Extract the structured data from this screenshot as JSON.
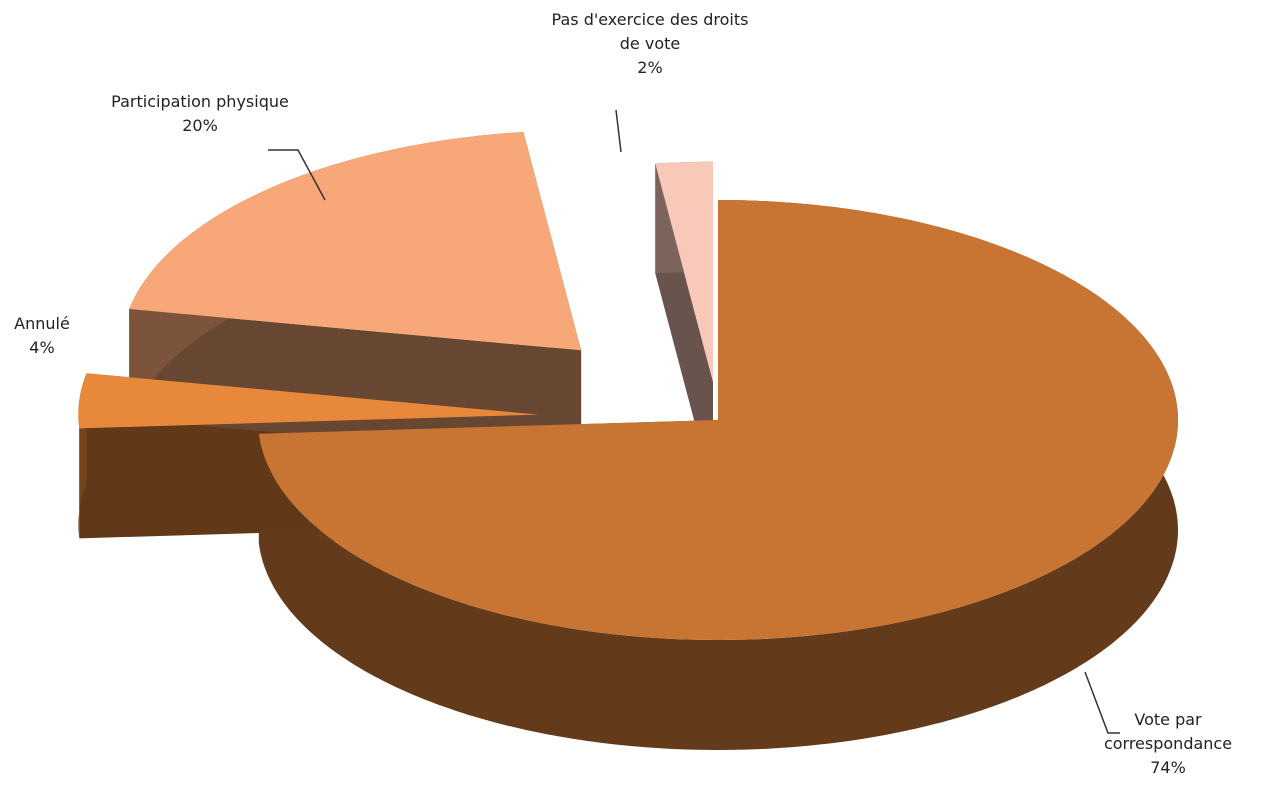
{
  "chart_data": {
    "type": "pie3d",
    "categories": [
      "Vote par correspondance",
      "Annulé",
      "Participation physique",
      "Pas d'exercice des droits de vote"
    ],
    "values": [
      74,
      4,
      20,
      2
    ],
    "value_labels": [
      "74%",
      "4%",
      "20%",
      "2%"
    ],
    "colors": [
      "#c87533",
      "#e8883a",
      "#f8a878",
      "#f8c8b8"
    ]
  }
}
